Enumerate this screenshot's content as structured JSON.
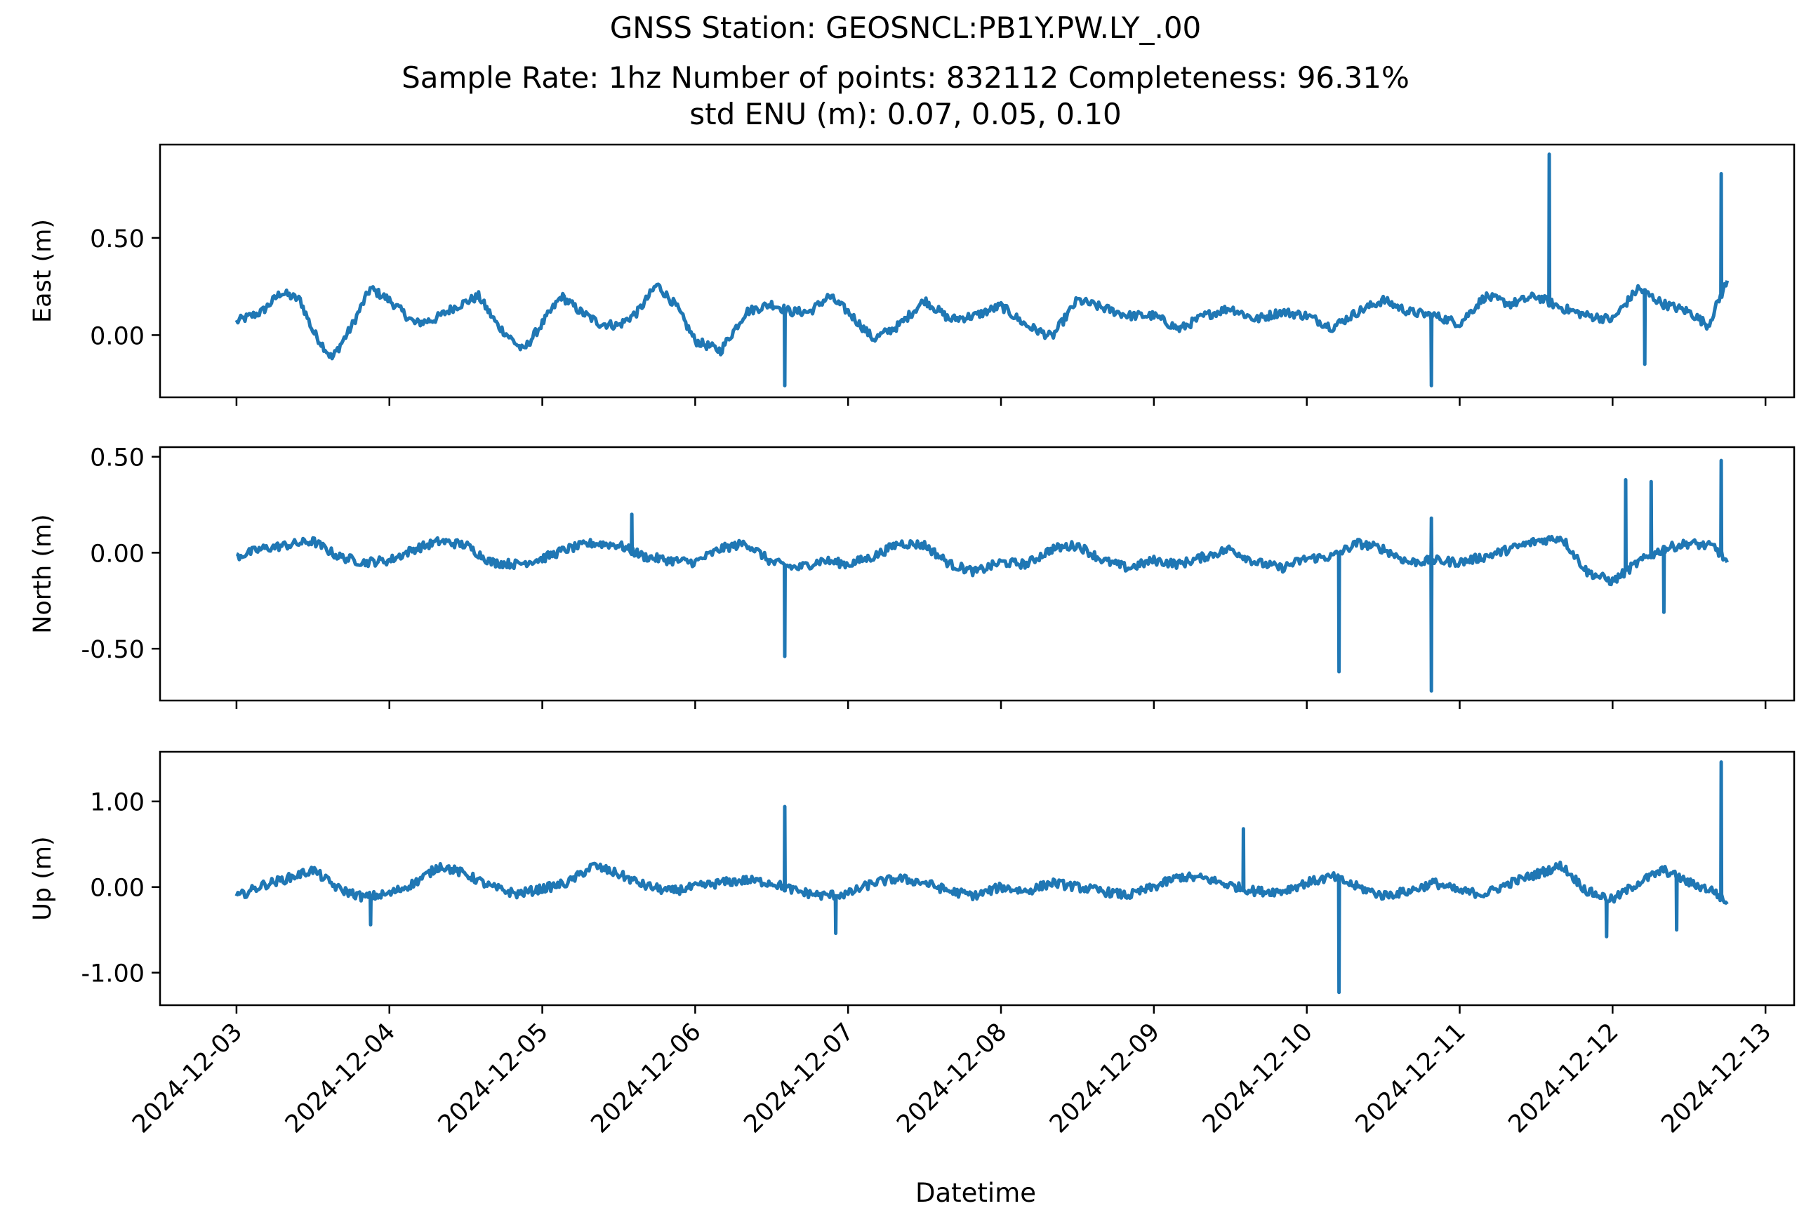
{
  "chart_data": {
    "type": "line",
    "title_lines": [
      "GNSS Station: GEOSNCL:PB1Y.PW.LY_.00",
      "Sample Rate: 1hz   Number of points: 832112    Completeness:  96.31%",
      "std ENU (m):  0.07, 0.05, 0.10"
    ],
    "xlabel": "Datetime",
    "x_ticks": [
      "2024-12-03",
      "2024-12-04",
      "2024-12-05",
      "2024-12-06",
      "2024-12-07",
      "2024-12-08",
      "2024-12-09",
      "2024-12-10",
      "2024-12-11",
      "2024-12-12",
      "2024-12-13"
    ],
    "xlim": [
      "2024-12-02T12:00",
      "2024-12-13T04:30"
    ],
    "series_color": "#1f77b4",
    "grid": false,
    "panels": [
      {
        "ylabel": "East (m)",
        "ylim": [
          -0.32,
          0.98
        ],
        "yticks": [
          {
            "v": 0.5,
            "label": "0.50"
          },
          {
            "v": 0.0,
            "label": "0.00"
          }
        ],
        "x": [
          "2024-12-03T00:00",
          "2024-12-03T04:00",
          "2024-12-03T07:00",
          "2024-12-03T10:00",
          "2024-12-03T12:00",
          "2024-12-03T15:00",
          "2024-12-03T18:00",
          "2024-12-03T21:00",
          "2024-12-04T00:00",
          "2024-12-04T04:00",
          "2024-12-04T07:00",
          "2024-12-04T10:00",
          "2024-12-04T14:00",
          "2024-12-04T17:00",
          "2024-12-04T21:00",
          "2024-12-05T00:00",
          "2024-12-05T03:00",
          "2024-12-05T06:00",
          "2024-12-05T09:00",
          "2024-12-05T12:00",
          "2024-12-05T15:00",
          "2024-12-05T18:00",
          "2024-12-05T21:00",
          "2024-12-06T00:00",
          "2024-12-06T04:00",
          "2024-12-06T08:00",
          "2024-12-06T12:00",
          "2024-12-06T15:00",
          "2024-12-06T18:00",
          "2024-12-06T21:00",
          "2024-12-07T00:00",
          "2024-12-07T04:00",
          "2024-12-07T08:00",
          "2024-12-07T12:00",
          "2024-12-07T16:00",
          "2024-12-07T20:00",
          "2024-12-08T00:00",
          "2024-12-08T04:00",
          "2024-12-08T08:00",
          "2024-12-08T12:00",
          "2024-12-08T16:00",
          "2024-12-08T20:00",
          "2024-12-09T00:00",
          "2024-12-09T04:00",
          "2024-12-09T08:00",
          "2024-12-09T12:00",
          "2024-12-09T16:00",
          "2024-12-09T20:00",
          "2024-12-10T00:00",
          "2024-12-10T04:00",
          "2024-12-10T08:00",
          "2024-12-10T12:00",
          "2024-12-10T16:00",
          "2024-12-10T20:00",
          "2024-12-11T00:00",
          "2024-12-11T04:00",
          "2024-12-11T08:00",
          "2024-12-11T12:00",
          "2024-12-11T16:00",
          "2024-12-11T20:00",
          "2024-12-12T00:00",
          "2024-12-12T04:00",
          "2024-12-12T08:00",
          "2024-12-12T12:00",
          "2024-12-12T15:00",
          "2024-12-12T18:00"
        ],
        "y": [
          0.07,
          0.12,
          0.22,
          0.18,
          0.02,
          -0.12,
          0.04,
          0.24,
          0.18,
          0.06,
          0.08,
          0.14,
          0.2,
          0.05,
          -0.08,
          0.06,
          0.2,
          0.12,
          0.06,
          0.05,
          0.12,
          0.26,
          0.15,
          -0.03,
          -0.08,
          0.12,
          0.16,
          0.12,
          0.12,
          0.2,
          0.12,
          -0.02,
          0.05,
          0.18,
          0.08,
          0.1,
          0.15,
          0.05,
          -0.01,
          0.18,
          0.14,
          0.1,
          0.1,
          0.03,
          0.1,
          0.14,
          0.08,
          0.12,
          0.1,
          0.04,
          0.12,
          0.18,
          0.12,
          0.1,
          0.06,
          0.2,
          0.16,
          0.2,
          0.14,
          0.1,
          0.08,
          0.24,
          0.16,
          0.12,
          0.05,
          0.28
        ],
        "spikes": [
          {
            "x": "2024-12-11T14:00",
            "y": 0.93
          },
          {
            "x": "2024-12-12T17:00",
            "y": 0.83
          },
          {
            "x": "2024-12-06T14:00",
            "y": -0.26
          },
          {
            "x": "2024-12-10T19:30",
            "y": -0.26
          },
          {
            "x": "2024-12-12T05:00",
            "y": -0.15
          }
        ]
      },
      {
        "ylabel": "North (m)",
        "ylim": [
          -0.77,
          0.55
        ],
        "yticks": [
          {
            "v": 0.5,
            "label": "0.50"
          },
          {
            "v": 0.0,
            "label": "0.00"
          },
          {
            "v": -0.5,
            "label": "-0.50"
          }
        ],
        "x": [
          "2024-12-03T00:00",
          "2024-12-03T04:00",
          "2024-12-03T08:00",
          "2024-12-03T12:00",
          "2024-12-03T16:00",
          "2024-12-03T20:00",
          "2024-12-04T00:00",
          "2024-12-04T04:00",
          "2024-12-04T08:00",
          "2024-12-04T12:00",
          "2024-12-04T16:00",
          "2024-12-04T20:00",
          "2024-12-05T00:00",
          "2024-12-05T04:00",
          "2024-12-05T08:00",
          "2024-12-05T12:00",
          "2024-12-05T16:00",
          "2024-12-05T20:00",
          "2024-12-06T00:00",
          "2024-12-06T04:00",
          "2024-12-06T08:00",
          "2024-12-06T12:00",
          "2024-12-06T16:00",
          "2024-12-06T20:00",
          "2024-12-07T00:00",
          "2024-12-07T04:00",
          "2024-12-07T08:00",
          "2024-12-07T12:00",
          "2024-12-07T16:00",
          "2024-12-07T20:00",
          "2024-12-08T00:00",
          "2024-12-08T04:00",
          "2024-12-08T08:00",
          "2024-12-08T12:00",
          "2024-12-08T16:00",
          "2024-12-08T20:00",
          "2024-12-09T00:00",
          "2024-12-09T04:00",
          "2024-12-09T08:00",
          "2024-12-09T12:00",
          "2024-12-09T16:00",
          "2024-12-09T20:00",
          "2024-12-10T00:00",
          "2024-12-10T04:00",
          "2024-12-10T08:00",
          "2024-12-10T12:00",
          "2024-12-10T16:00",
          "2024-12-10T20:00",
          "2024-12-11T00:00",
          "2024-12-11T04:00",
          "2024-12-11T08:00",
          "2024-12-11T12:00",
          "2024-12-11T16:00",
          "2024-12-11T20:00",
          "2024-12-12T00:00",
          "2024-12-12T04:00",
          "2024-12-12T08:00",
          "2024-12-12T12:00",
          "2024-12-12T16:00",
          "2024-12-12T18:00"
        ],
        "y": [
          -0.02,
          0.02,
          0.04,
          0.06,
          -0.02,
          -0.05,
          -0.04,
          0.02,
          0.06,
          0.04,
          -0.05,
          -0.06,
          -0.03,
          0.02,
          0.05,
          0.04,
          -0.02,
          -0.04,
          -0.05,
          0.02,
          0.05,
          -0.05,
          -0.08,
          -0.04,
          -0.06,
          -0.02,
          0.05,
          0.04,
          -0.06,
          -0.1,
          -0.05,
          -0.06,
          0.02,
          0.04,
          -0.04,
          -0.08,
          -0.04,
          -0.06,
          -0.02,
          0.02,
          -0.05,
          -0.08,
          -0.03,
          -0.02,
          0.05,
          0.02,
          -0.05,
          -0.04,
          -0.05,
          -0.02,
          0.02,
          0.06,
          0.08,
          -0.1,
          -0.15,
          -0.05,
          0.02,
          0.05,
          0.03,
          -0.05
        ],
        "spikes": [
          {
            "x": "2024-12-06T14:00",
            "y": -0.54
          },
          {
            "x": "2024-12-10T05:00",
            "y": -0.62
          },
          {
            "x": "2024-12-10T19:30",
            "y": -0.72
          },
          {
            "x": "2024-12-12T02:00",
            "y": 0.38
          },
          {
            "x": "2024-12-12T06:00",
            "y": 0.37
          },
          {
            "x": "2024-12-12T17:00",
            "y": 0.48
          },
          {
            "x": "2024-12-10T19:30",
            "y": 0.18
          },
          {
            "x": "2024-12-12T08:00",
            "y": -0.31
          },
          {
            "x": "2024-12-05T14:00",
            "y": 0.2
          }
        ]
      },
      {
        "ylabel": "Up (m)",
        "ylim": [
          -1.38,
          1.58
        ],
        "yticks": [
          {
            "v": 1.0,
            "label": "1.00"
          },
          {
            "v": 0.0,
            "label": "0.00"
          },
          {
            "v": -1.0,
            "label": "-1.00"
          }
        ],
        "x": [
          "2024-12-03T00:00",
          "2024-12-03T04:00",
          "2024-12-03T08:00",
          "2024-12-03T12:00",
          "2024-12-03T16:00",
          "2024-12-03T20:00",
          "2024-12-04T00:00",
          "2024-12-04T04:00",
          "2024-12-04T08:00",
          "2024-12-04T12:00",
          "2024-12-04T16:00",
          "2024-12-04T20:00",
          "2024-12-05T00:00",
          "2024-12-05T04:00",
          "2024-12-05T08:00",
          "2024-12-05T12:00",
          "2024-12-05T16:00",
          "2024-12-05T20:00",
          "2024-12-06T00:00",
          "2024-12-06T04:00",
          "2024-12-06T08:00",
          "2024-12-06T12:00",
          "2024-12-06T16:00",
          "2024-12-06T20:00",
          "2024-12-07T00:00",
          "2024-12-07T04:00",
          "2024-12-07T08:00",
          "2024-12-07T12:00",
          "2024-12-07T16:00",
          "2024-12-07T20:00",
          "2024-12-08T00:00",
          "2024-12-08T04:00",
          "2024-12-08T08:00",
          "2024-12-08T12:00",
          "2024-12-08T16:00",
          "2024-12-08T20:00",
          "2024-12-09T00:00",
          "2024-12-09T04:00",
          "2024-12-09T08:00",
          "2024-12-09T12:00",
          "2024-12-09T16:00",
          "2024-12-09T20:00",
          "2024-12-10T00:00",
          "2024-12-10T04:00",
          "2024-12-10T08:00",
          "2024-12-10T12:00",
          "2024-12-10T16:00",
          "2024-12-10T20:00",
          "2024-12-11T00:00",
          "2024-12-11T04:00",
          "2024-12-11T08:00",
          "2024-12-11T12:00",
          "2024-12-11T16:00",
          "2024-12-11T20:00",
          "2024-12-12T00:00",
          "2024-12-12T04:00",
          "2024-12-12T08:00",
          "2024-12-12T12:00",
          "2024-12-12T16:00",
          "2024-12-12T18:00"
        ],
        "y": [
          -0.12,
          0.02,
          0.1,
          0.2,
          -0.02,
          -0.12,
          -0.08,
          0.05,
          0.25,
          0.15,
          0.0,
          -0.08,
          -0.02,
          0.05,
          0.25,
          0.15,
          0.02,
          -0.05,
          0.0,
          0.05,
          0.08,
          0.05,
          -0.05,
          -0.1,
          -0.08,
          0.05,
          0.1,
          0.05,
          -0.05,
          -0.1,
          0.0,
          -0.05,
          0.05,
          0.0,
          -0.05,
          -0.1,
          0.0,
          0.12,
          0.1,
          0.02,
          -0.05,
          -0.05,
          0.05,
          0.12,
          0.0,
          -0.1,
          -0.05,
          0.05,
          -0.05,
          -0.08,
          0.05,
          0.15,
          0.25,
          -0.05,
          -0.15,
          0.05,
          0.2,
          0.05,
          -0.05,
          -0.2
        ],
        "spikes": [
          {
            "x": "2024-12-06T14:00",
            "y": 0.94
          },
          {
            "x": "2024-12-09T14:00",
            "y": 0.68
          },
          {
            "x": "2024-12-12T17:00",
            "y": 1.46
          },
          {
            "x": "2024-12-10T05:00",
            "y": -1.23
          },
          {
            "x": "2024-12-03T21:00",
            "y": -0.44
          },
          {
            "x": "2024-12-06T22:00",
            "y": -0.54
          },
          {
            "x": "2024-12-11T23:00",
            "y": -0.58
          },
          {
            "x": "2024-12-12T10:00",
            "y": -0.5
          }
        ]
      }
    ]
  }
}
